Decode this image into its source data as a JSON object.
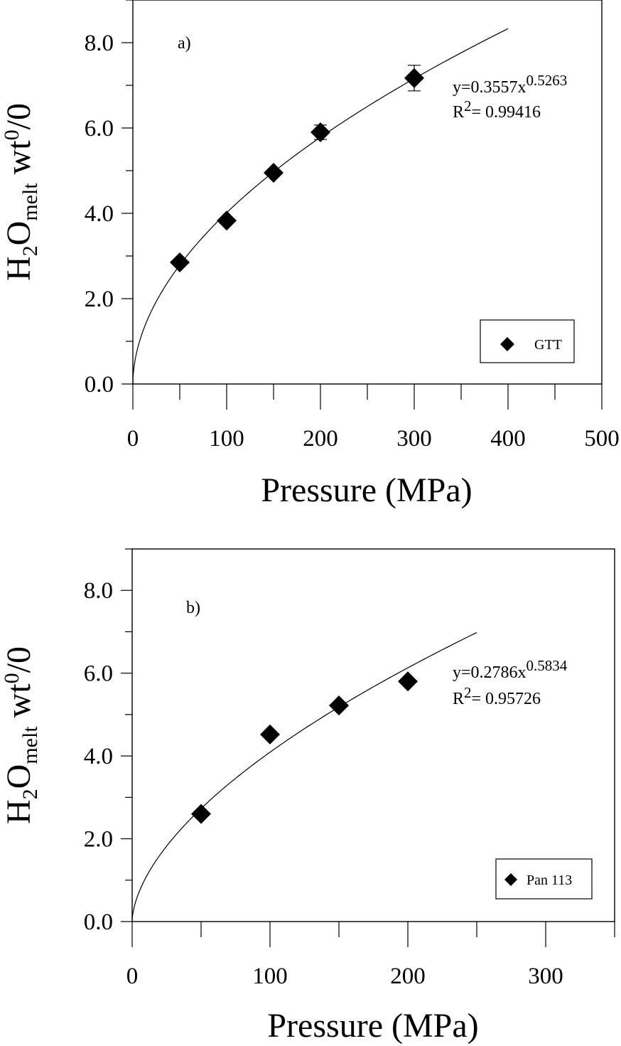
{
  "chart_data": [
    {
      "type": "scatter",
      "panel_label": "a)",
      "xlabel": "Pressure (MPa)",
      "ylabel": {
        "main": "H",
        "sub1": "2",
        "main2": "O",
        "sub2": "melt",
        "tail": " wt",
        "sup": "0",
        "tail2": "/0"
      },
      "xlim": [
        0,
        500
      ],
      "ylim": [
        0,
        9
      ],
      "x_ticks": [
        "0",
        "100",
        "200",
        "300",
        "400",
        "500"
      ],
      "y_ticks": [
        "0.0",
        "2.0",
        "4.0",
        "6.0",
        "8.0"
      ],
      "series": [
        {
          "name": "GTT",
          "x": [
            50,
            100,
            150,
            200,
            300
          ],
          "y": [
            2.85,
            3.83,
            4.95,
            5.9,
            7.17
          ],
          "yerr": [
            0,
            0,
            0,
            0.17,
            0.3
          ]
        }
      ],
      "fit": {
        "a": 0.3557,
        "b": 0.5263,
        "xmax": 400
      },
      "equation": {
        "text": "y=0.3557x",
        "exp": "0.5263",
        "r2_prefix": "R",
        "r2_sup": "2",
        "r2_value": "= 0.99416"
      },
      "legend_position": "bottom-right",
      "colors": {
        "marker": "#000000",
        "line": "#000000"
      }
    },
    {
      "type": "scatter",
      "panel_label": "b)",
      "xlabel": "Pressure (MPa)",
      "ylabel": {
        "main": "H",
        "sub1": "2",
        "main2": "O",
        "sub2": "melt",
        "tail": " wt",
        "sup": "0",
        "tail2": "/0"
      },
      "xlim": [
        0,
        350
      ],
      "ylim": [
        0,
        9
      ],
      "x_ticks": [
        "0",
        "100",
        "200",
        "300"
      ],
      "y_ticks": [
        "0.0",
        "2.0",
        "4.0",
        "6.0",
        "8.0"
      ],
      "series": [
        {
          "name": "Pan 113",
          "x": [
            50,
            100,
            150,
            200
          ],
          "y": [
            2.6,
            4.52,
            5.22,
            5.8
          ],
          "yerr": [
            0,
            0,
            0,
            0
          ]
        }
      ],
      "fit": {
        "a": 0.2786,
        "b": 0.5834,
        "xmax": 250
      },
      "equation": {
        "text": "y=0.2786x",
        "exp": "0.5834",
        "r2_prefix": "R",
        "r2_sup": "2",
        "r2_value": "= 0.95726"
      },
      "legend_position": "bottom-right",
      "colors": {
        "marker": "#000000",
        "line": "#000000"
      }
    }
  ]
}
